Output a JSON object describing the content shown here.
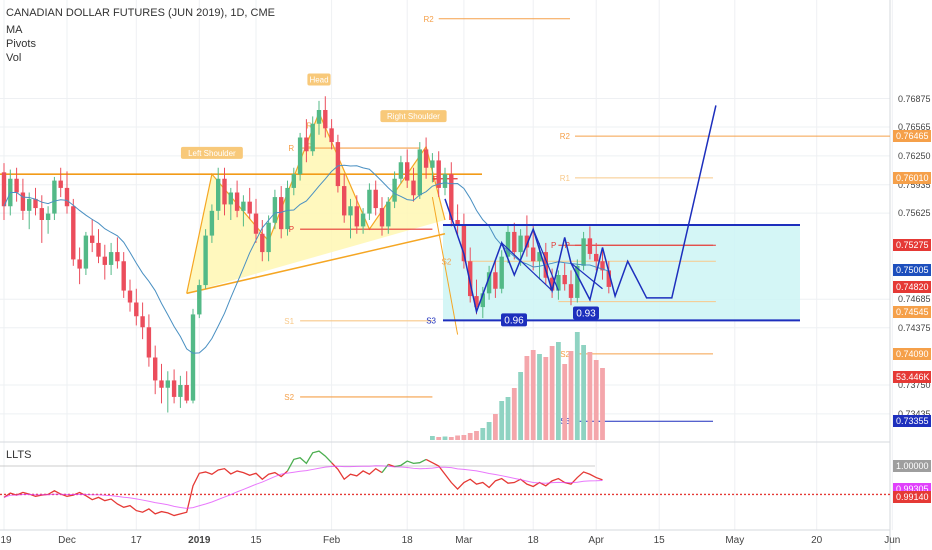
{
  "header": {
    "symbol_line": "CANADIAN DOLLAR FUTURES (JUN 2019), 1D, CME",
    "indicators": [
      "MA",
      "Pivots",
      "Vol"
    ]
  },
  "indicator_panel": {
    "title": "LLTS"
  },
  "colors": {
    "up": "#53b987",
    "down": "#eb4d5c",
    "vol_up": "#8fd3c2",
    "vol_down": "#f4a6ab",
    "ma": "#4a90c2",
    "pattern_fill": "#fff7b3",
    "pattern_stroke": "#f5a623",
    "projection": "#1d2fbd",
    "box_fill": "#ccf5f5",
    "pivot_orange": "#f5a04a",
    "pivot_red": "#e53935",
    "llts_red": "#e53935",
    "llts_green": "#4caf50",
    "llts_ma": "#e040fb"
  },
  "chart_data": {
    "type": "candlestick",
    "title": "CANADIAN DOLLAR FUTURES (JUN 2019), 1D, CME",
    "y_axis": {
      "range": [
        0.7315,
        0.7795
      ],
      "tick_labels": [
        "0.76875",
        "0.76565",
        "0.76250",
        "0.75935",
        "0.75625",
        "0.74685",
        "0.74375",
        "0.73750",
        "0.73435"
      ],
      "tick_values": [
        0.76875,
        0.76565,
        0.7625,
        0.75935,
        0.75625,
        0.74685,
        0.74375,
        0.7375,
        0.73435
      ]
    },
    "price_tags": [
      {
        "label": "0.76465",
        "value": 0.76465,
        "color": "#f5a04a"
      },
      {
        "label": "0.76010",
        "value": 0.7601,
        "color": "#f5a04a"
      },
      {
        "label": "0.75275",
        "value": 0.75275,
        "color": "#e53935"
      },
      {
        "label": "0.75005",
        "value": 0.75005,
        "color": "#1d4fbd"
      },
      {
        "label": "0.74820",
        "value": 0.7482,
        "color": "#e53935"
      },
      {
        "label": "0.74545",
        "value": 0.74545,
        "color": "#f5a04a"
      },
      {
        "label": "0.74090",
        "value": 0.7409,
        "color": "#f5a04a"
      },
      {
        "label": "53.446K",
        "value": 0.7384,
        "color": "#e53935"
      },
      {
        "label": "0.73355",
        "value": 0.73355,
        "color": "#1d2fbd"
      }
    ],
    "x_axis": {
      "labels": [
        "19",
        "Dec",
        "17",
        "2019",
        "15",
        "Feb",
        "18",
        "Mar",
        "18",
        "Apr",
        "15",
        "May",
        "20",
        "Jun"
      ],
      "label_positions_index": [
        0,
        10,
        21,
        31,
        40,
        52,
        64,
        73,
        84,
        94,
        104,
        116,
        129,
        141
      ]
    },
    "candles": [
      {
        "o": 0.7607,
        "h": 0.7617,
        "l": 0.7555,
        "c": 0.757
      },
      {
        "o": 0.757,
        "h": 0.761,
        "l": 0.756,
        "c": 0.76
      },
      {
        "o": 0.76,
        "h": 0.7612,
        "l": 0.7575,
        "c": 0.7585
      },
      {
        "o": 0.7585,
        "h": 0.76,
        "l": 0.7555,
        "c": 0.7565
      },
      {
        "o": 0.7565,
        "h": 0.7585,
        "l": 0.7545,
        "c": 0.7578
      },
      {
        "o": 0.7578,
        "h": 0.759,
        "l": 0.756,
        "c": 0.7568
      },
      {
        "o": 0.7568,
        "h": 0.7582,
        "l": 0.753,
        "c": 0.7555
      },
      {
        "o": 0.7555,
        "h": 0.757,
        "l": 0.754,
        "c": 0.7562
      },
      {
        "o": 0.7562,
        "h": 0.7602,
        "l": 0.7555,
        "c": 0.7598
      },
      {
        "o": 0.7598,
        "h": 0.7612,
        "l": 0.758,
        "c": 0.759
      },
      {
        "o": 0.759,
        "h": 0.7608,
        "l": 0.7562,
        "c": 0.757
      },
      {
        "o": 0.757,
        "h": 0.7578,
        "l": 0.7505,
        "c": 0.7512
      },
      {
        "o": 0.7512,
        "h": 0.7525,
        "l": 0.7485,
        "c": 0.7502
      },
      {
        "o": 0.7502,
        "h": 0.7542,
        "l": 0.7495,
        "c": 0.7538
      },
      {
        "o": 0.7538,
        "h": 0.7556,
        "l": 0.752,
        "c": 0.753
      },
      {
        "o": 0.753,
        "h": 0.7545,
        "l": 0.7508,
        "c": 0.7515
      },
      {
        "o": 0.7515,
        "h": 0.7528,
        "l": 0.749,
        "c": 0.7506
      },
      {
        "o": 0.7506,
        "h": 0.753,
        "l": 0.7495,
        "c": 0.752
      },
      {
        "o": 0.752,
        "h": 0.7536,
        "l": 0.7502,
        "c": 0.751
      },
      {
        "o": 0.751,
        "h": 0.752,
        "l": 0.747,
        "c": 0.7478
      },
      {
        "o": 0.7478,
        "h": 0.749,
        "l": 0.7455,
        "c": 0.7465
      },
      {
        "o": 0.7465,
        "h": 0.748,
        "l": 0.744,
        "c": 0.745
      },
      {
        "o": 0.745,
        "h": 0.7465,
        "l": 0.7425,
        "c": 0.7438
      },
      {
        "o": 0.7438,
        "h": 0.7452,
        "l": 0.7395,
        "c": 0.7405
      },
      {
        "o": 0.7405,
        "h": 0.7418,
        "l": 0.7365,
        "c": 0.738
      },
      {
        "o": 0.738,
        "h": 0.7398,
        "l": 0.7355,
        "c": 0.7372
      },
      {
        "o": 0.7372,
        "h": 0.739,
        "l": 0.7345,
        "c": 0.738
      },
      {
        "o": 0.738,
        "h": 0.7392,
        "l": 0.7355,
        "c": 0.7362
      },
      {
        "o": 0.7362,
        "h": 0.7385,
        "l": 0.735,
        "c": 0.7375
      },
      {
        "o": 0.7375,
        "h": 0.739,
        "l": 0.7355,
        "c": 0.7358
      },
      {
        "o": 0.7358,
        "h": 0.7458,
        "l": 0.7355,
        "c": 0.7452
      },
      {
        "o": 0.7452,
        "h": 0.749,
        "l": 0.7448,
        "c": 0.7484
      },
      {
        "o": 0.7484,
        "h": 0.7545,
        "l": 0.748,
        "c": 0.7538
      },
      {
        "o": 0.7538,
        "h": 0.7572,
        "l": 0.753,
        "c": 0.7565
      },
      {
        "o": 0.7565,
        "h": 0.7612,
        "l": 0.7555,
        "c": 0.76
      },
      {
        "o": 0.76,
        "h": 0.7612,
        "l": 0.756,
        "c": 0.7572
      },
      {
        "o": 0.7572,
        "h": 0.759,
        "l": 0.7555,
        "c": 0.7585
      },
      {
        "o": 0.7585,
        "h": 0.7598,
        "l": 0.7558,
        "c": 0.7565
      },
      {
        "o": 0.7565,
        "h": 0.7582,
        "l": 0.7548,
        "c": 0.7575
      },
      {
        "o": 0.7575,
        "h": 0.759,
        "l": 0.7556,
        "c": 0.7562
      },
      {
        "o": 0.7562,
        "h": 0.7578,
        "l": 0.753,
        "c": 0.754
      },
      {
        "o": 0.754,
        "h": 0.7555,
        "l": 0.751,
        "c": 0.752
      },
      {
        "o": 0.752,
        "h": 0.756,
        "l": 0.751,
        "c": 0.7552
      },
      {
        "o": 0.7552,
        "h": 0.7588,
        "l": 0.7545,
        "c": 0.758
      },
      {
        "o": 0.758,
        "h": 0.7592,
        "l": 0.7535,
        "c": 0.7545
      },
      {
        "o": 0.7545,
        "h": 0.7598,
        "l": 0.7538,
        "c": 0.759
      },
      {
        "o": 0.759,
        "h": 0.7612,
        "l": 0.7582,
        "c": 0.7605
      },
      {
        "o": 0.7605,
        "h": 0.765,
        "l": 0.7598,
        "c": 0.7645
      },
      {
        "o": 0.7645,
        "h": 0.7665,
        "l": 0.7618,
        "c": 0.763
      },
      {
        "o": 0.763,
        "h": 0.7668,
        "l": 0.7625,
        "c": 0.766
      },
      {
        "o": 0.766,
        "h": 0.7685,
        "l": 0.7648,
        "c": 0.7675
      },
      {
        "o": 0.7675,
        "h": 0.769,
        "l": 0.7645,
        "c": 0.7655
      },
      {
        "o": 0.7655,
        "h": 0.7665,
        "l": 0.7632,
        "c": 0.764
      },
      {
        "o": 0.764,
        "h": 0.7648,
        "l": 0.7585,
        "c": 0.7592
      },
      {
        "o": 0.7592,
        "h": 0.7605,
        "l": 0.7552,
        "c": 0.756
      },
      {
        "o": 0.756,
        "h": 0.7578,
        "l": 0.7535,
        "c": 0.757
      },
      {
        "o": 0.757,
        "h": 0.7582,
        "l": 0.754,
        "c": 0.7548
      },
      {
        "o": 0.7548,
        "h": 0.7568,
        "l": 0.754,
        "c": 0.7562
      },
      {
        "o": 0.7562,
        "h": 0.7595,
        "l": 0.7555,
        "c": 0.7588
      },
      {
        "o": 0.7588,
        "h": 0.7598,
        "l": 0.756,
        "c": 0.7568
      },
      {
        "o": 0.7568,
        "h": 0.758,
        "l": 0.7538,
        "c": 0.7548
      },
      {
        "o": 0.7548,
        "h": 0.758,
        "l": 0.754,
        "c": 0.7575
      },
      {
        "o": 0.7575,
        "h": 0.7608,
        "l": 0.7568,
        "c": 0.76
      },
      {
        "o": 0.76,
        "h": 0.7625,
        "l": 0.7595,
        "c": 0.7618
      },
      {
        "o": 0.7618,
        "h": 0.7632,
        "l": 0.759,
        "c": 0.7598
      },
      {
        "o": 0.7598,
        "h": 0.7612,
        "l": 0.7575,
        "c": 0.7582
      },
      {
        "o": 0.7582,
        "h": 0.764,
        "l": 0.7578,
        "c": 0.7632
      },
      {
        "o": 0.7632,
        "h": 0.7645,
        "l": 0.76,
        "c": 0.7612
      },
      {
        "o": 0.7612,
        "h": 0.7628,
        "l": 0.7596,
        "c": 0.762
      },
      {
        "o": 0.762,
        "h": 0.763,
        "l": 0.758,
        "c": 0.759
      },
      {
        "o": 0.759,
        "h": 0.7612,
        "l": 0.7582,
        "c": 0.7605
      },
      {
        "o": 0.7605,
        "h": 0.7618,
        "l": 0.7548,
        "c": 0.7555
      },
      {
        "o": 0.7555,
        "h": 0.7572,
        "l": 0.7538,
        "c": 0.755
      },
      {
        "o": 0.755,
        "h": 0.7562,
        "l": 0.7502,
        "c": 0.751
      },
      {
        "o": 0.751,
        "h": 0.7525,
        "l": 0.7465,
        "c": 0.7472
      },
      {
        "o": 0.7472,
        "h": 0.749,
        "l": 0.7452,
        "c": 0.746
      },
      {
        "o": 0.746,
        "h": 0.7482,
        "l": 0.7448,
        "c": 0.7475
      },
      {
        "o": 0.7475,
        "h": 0.7505,
        "l": 0.7468,
        "c": 0.7498
      },
      {
        "o": 0.7498,
        "h": 0.7512,
        "l": 0.747,
        "c": 0.748
      },
      {
        "o": 0.748,
        "h": 0.7522,
        "l": 0.7475,
        "c": 0.7515
      },
      {
        "o": 0.7515,
        "h": 0.755,
        "l": 0.7508,
        "c": 0.7542
      },
      {
        "o": 0.7542,
        "h": 0.7552,
        "l": 0.7512,
        "c": 0.752
      },
      {
        "o": 0.752,
        "h": 0.7545,
        "l": 0.7505,
        "c": 0.7538
      },
      {
        "o": 0.7538,
        "h": 0.756,
        "l": 0.7515,
        "c": 0.7525
      },
      {
        "o": 0.7525,
        "h": 0.755,
        "l": 0.75,
        "c": 0.751
      },
      {
        "o": 0.751,
        "h": 0.753,
        "l": 0.749,
        "c": 0.752
      },
      {
        "o": 0.752,
        "h": 0.753,
        "l": 0.7485,
        "c": 0.7492
      },
      {
        "o": 0.7492,
        "h": 0.7502,
        "l": 0.747,
        "c": 0.7478
      },
      {
        "o": 0.7478,
        "h": 0.75,
        "l": 0.7468,
        "c": 0.7495
      },
      {
        "o": 0.7495,
        "h": 0.7508,
        "l": 0.7478,
        "c": 0.7485
      },
      {
        "o": 0.7485,
        "h": 0.75,
        "l": 0.7462,
        "c": 0.747
      },
      {
        "o": 0.747,
        "h": 0.7512,
        "l": 0.7465,
        "c": 0.7505
      },
      {
        "o": 0.7505,
        "h": 0.7542,
        "l": 0.75,
        "c": 0.7535
      },
      {
        "o": 0.7535,
        "h": 0.7548,
        "l": 0.7512,
        "c": 0.7518
      },
      {
        "o": 0.7518,
        "h": 0.753,
        "l": 0.75,
        "c": 0.751
      },
      {
        "o": 0.751,
        "h": 0.7522,
        "l": 0.749,
        "c": 0.75
      },
      {
        "o": 0.75,
        "h": 0.751,
        "l": 0.7475,
        "c": 0.7482
      }
    ]
  },
  "overlays": {
    "pattern_labels": [
      "Left Shoulder",
      "Head",
      "Right Shoulder",
      "R",
      "R"
    ],
    "projection_labels": [
      "0.96",
      "0.93"
    ],
    "pivot_left": [
      "R",
      "P",
      "S1",
      "S2",
      "S3",
      "S2"
    ],
    "pivot_right": [
      "R2",
      "R2",
      "R1",
      "P",
      "S2",
      "S3"
    ]
  },
  "llts": {
    "tags": [
      {
        "label": "1.00000",
        "color": "#9e9e9e"
      },
      {
        "label": "0.99305",
        "color": "#e040fb"
      },
      {
        "label": "0.99140",
        "color": "#e53935"
      }
    ]
  }
}
